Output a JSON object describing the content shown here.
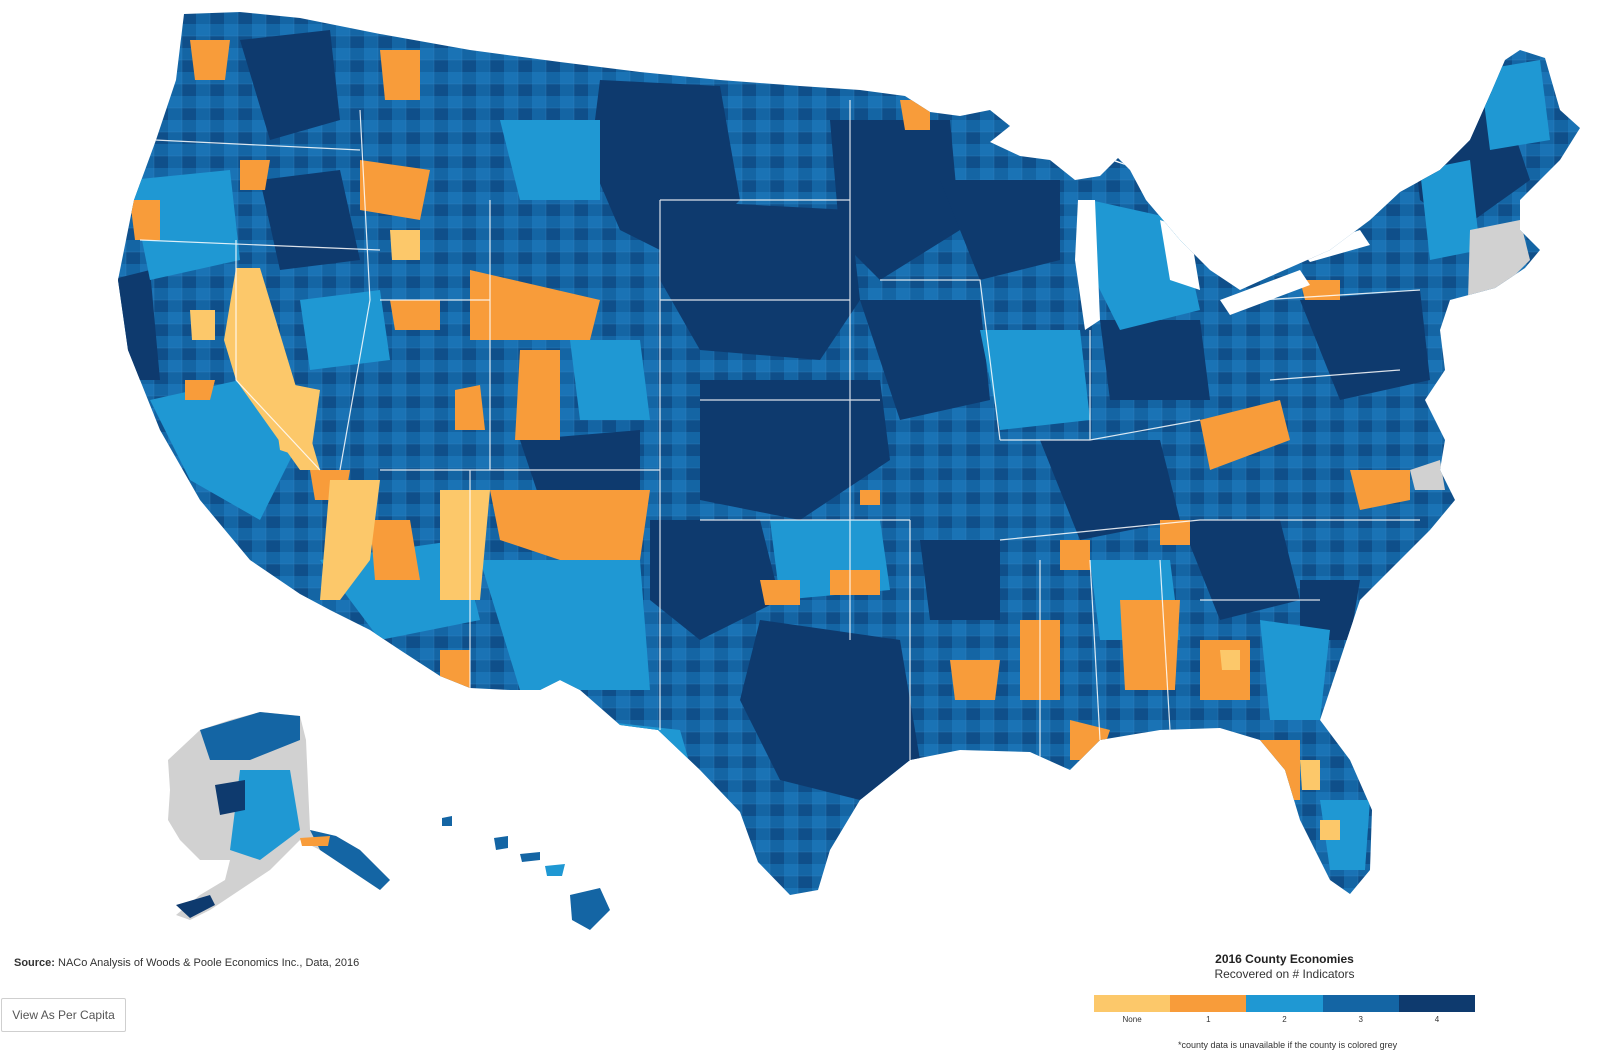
{
  "map": {
    "alt": "Choropleth map of US counties showing number of economic indicators recovered",
    "no_data_color": "#d1d1d1",
    "background": "#ffffff"
  },
  "source": {
    "label": "Source:",
    "text": "NACo Analysis of Woods & Poole Economics Inc., Data, 2016"
  },
  "button": {
    "label": "View As Per Capita"
  },
  "legend": {
    "title": "2016 County Economies",
    "subtitle": "Recovered on # Indicators",
    "items": [
      {
        "label": "None",
        "color": "#fcc86a"
      },
      {
        "label": "1",
        "color": "#f89c3a"
      },
      {
        "label": "2",
        "color": "#1f98d3"
      },
      {
        "label": "3",
        "color": "#1465a4"
      },
      {
        "label": "4",
        "color": "#0e3a6e"
      }
    ],
    "note": "*county data is unavailable if the county is colored grey"
  }
}
